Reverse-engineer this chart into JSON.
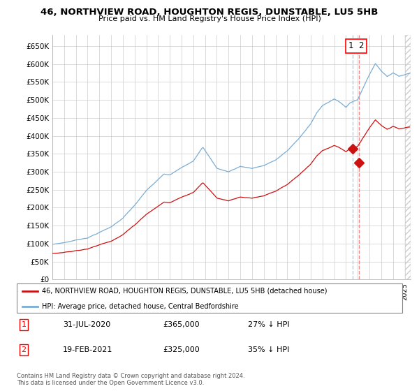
{
  "title": "46, NORTHVIEW ROAD, HOUGHTON REGIS, DUNSTABLE, LU5 5HB",
  "subtitle": "Price paid vs. HM Land Registry's House Price Index (HPI)",
  "ylabel_ticks": [
    "£0",
    "£50K",
    "£100K",
    "£150K",
    "£200K",
    "£250K",
    "£300K",
    "£350K",
    "£400K",
    "£450K",
    "£500K",
    "£550K",
    "£600K",
    "£650K"
  ],
  "ytick_values": [
    0,
    50000,
    100000,
    150000,
    200000,
    250000,
    300000,
    350000,
    400000,
    450000,
    500000,
    550000,
    600000,
    650000
  ],
  "ylim": [
    0,
    680000
  ],
  "hpi_color": "#7aadd4",
  "price_color": "#cc1111",
  "dashed_line_color_1": "#aaccee",
  "dashed_line_color_2": "#ee8888",
  "legend_label_price": "46, NORTHVIEW ROAD, HOUGHTON REGIS, DUNSTABLE, LU5 5HB (detached house)",
  "legend_label_hpi": "HPI: Average price, detached house, Central Bedfordshire",
  "transaction_1_date": "31-JUL-2020",
  "transaction_1_price": "£365,000",
  "transaction_1_pct": "27% ↓ HPI",
  "transaction_2_date": "19-FEB-2021",
  "transaction_2_price": "£325,000",
  "transaction_2_pct": "35% ↓ HPI",
  "footnote": "Contains HM Land Registry data © Crown copyright and database right 2024.\nThis data is licensed under the Open Government Licence v3.0.",
  "grid_color": "#cccccc",
  "transaction_1_x": 2020.58,
  "transaction_1_y": 365000,
  "transaction_2_x": 2021.12,
  "transaction_2_y": 325000,
  "xmin": 1995,
  "xmax": 2025.5
}
